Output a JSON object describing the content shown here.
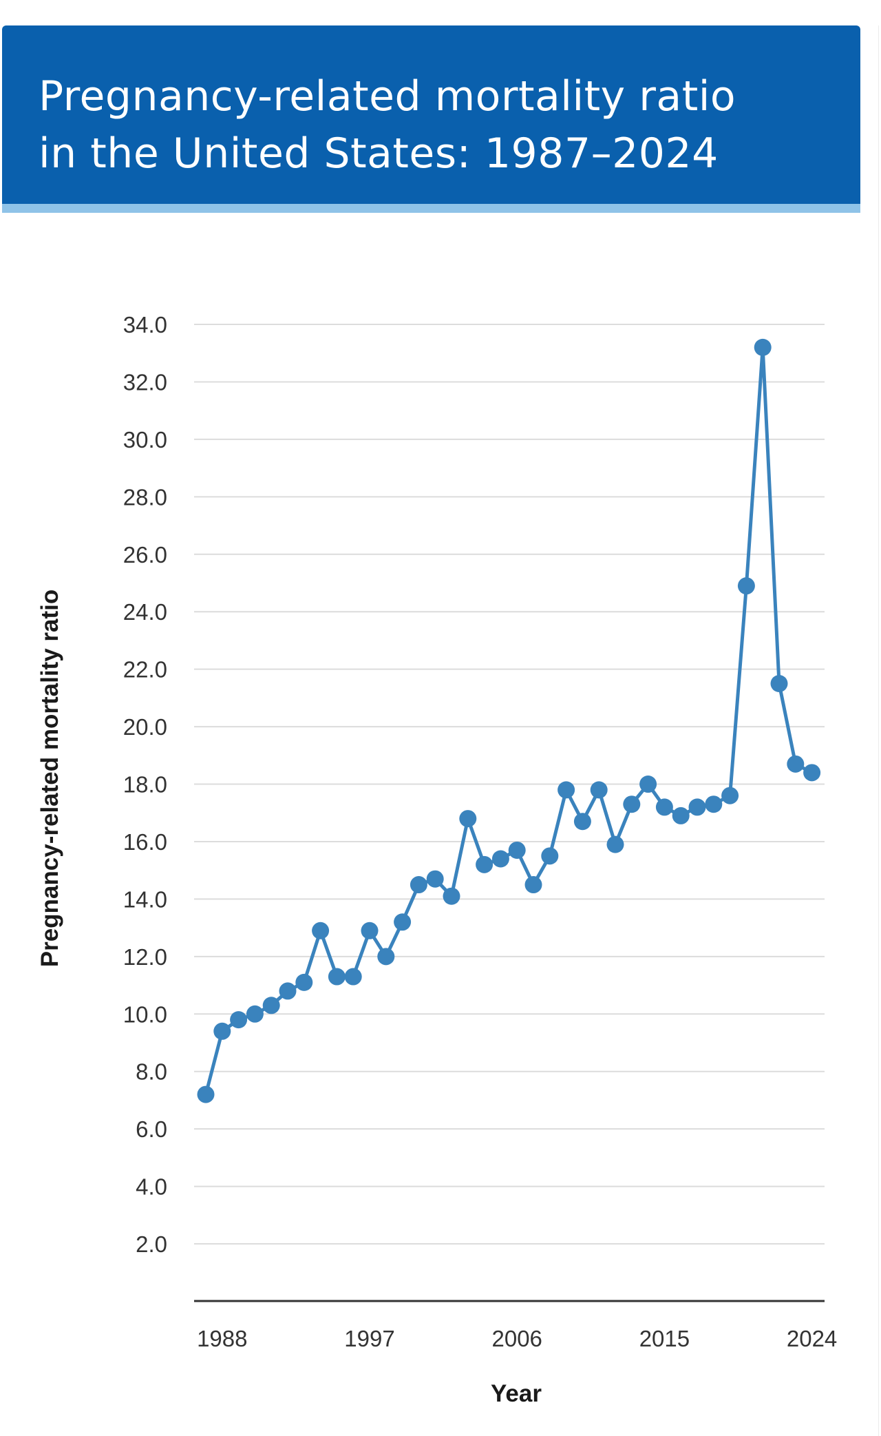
{
  "header": {
    "title_line1": "Pregnancy-related mortality ratio",
    "title_line2": "in the United States: 1987–2024"
  },
  "colors": {
    "header_bg": "#0a60ad",
    "header_accent": "#8fc3e8",
    "series": "#3a83bd",
    "grid": "#dcdcdc",
    "axis": "#333333"
  },
  "chart_data": {
    "type": "line",
    "title": "Pregnancy-related mortality ratio in the United States: 1987–2024",
    "xlabel": "Year",
    "ylabel": "Pregnancy-related mortality ratio",
    "x": [
      1987,
      1988,
      1989,
      1990,
      1991,
      1992,
      1993,
      1994,
      1995,
      1996,
      1997,
      1998,
      1999,
      2000,
      2001,
      2002,
      2003,
      2004,
      2005,
      2006,
      2007,
      2008,
      2009,
      2010,
      2011,
      2012,
      2013,
      2014,
      2015,
      2016,
      2017,
      2018,
      2019,
      2020,
      2021,
      2022,
      2023,
      2024
    ],
    "series": [
      {
        "name": "Pregnancy-related mortality ratio",
        "values": [
          7.2,
          9.4,
          9.8,
          10.0,
          10.3,
          10.8,
          11.1,
          12.9,
          11.3,
          11.3,
          12.9,
          12.0,
          13.2,
          14.5,
          14.7,
          14.1,
          16.8,
          15.2,
          15.4,
          15.7,
          14.5,
          15.5,
          17.8,
          16.7,
          17.8,
          15.9,
          17.3,
          18.0,
          17.2,
          16.9,
          17.2,
          17.3,
          17.6,
          24.9,
          33.2,
          21.5,
          18.7,
          18.4
        ]
      }
    ],
    "xlim": [
      1987,
      2025
    ],
    "xticks": [
      1988,
      1997,
      2006,
      2015,
      2024
    ],
    "xtick_labels": [
      "1988",
      "1997",
      "2006",
      "2015",
      "2024"
    ],
    "ylim": [
      0,
      34
    ],
    "yticks": [
      2,
      4,
      6,
      8,
      10,
      12,
      14,
      16,
      18,
      20,
      22,
      24,
      26,
      28,
      30,
      32,
      34
    ],
    "ytick_labels": [
      "2.0",
      "4.0",
      "6.0",
      "8.0",
      "10.0",
      "12.0",
      "14.0",
      "16.0",
      "18.0",
      "20.0",
      "22.0",
      "24.0",
      "26.0",
      "28.0",
      "30.0",
      "32.0",
      "34.0"
    ],
    "grid": true,
    "legend": "none",
    "markers": true
  }
}
